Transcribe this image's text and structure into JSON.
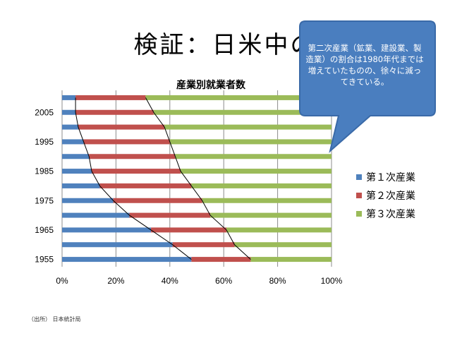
{
  "slide": {
    "title": "検証：日米中の",
    "source_note": "（出所） 日本統計局"
  },
  "callout": {
    "text": "第二次産業（鉱業、建設業、製造業）の割合は1980年代までは増えていたものの、徐々に減ってきている。",
    "fill": "#4a7ebf",
    "stroke": "#3a6aa8"
  },
  "chart_data": {
    "type": "bar",
    "orientation": "horizontal",
    "stacked": "percent",
    "title": "産業別就業者数",
    "categories": [
      "1955",
      "1960",
      "1965",
      "1970",
      "1975",
      "1980",
      "1985",
      "1990",
      "1995",
      "2000",
      "2005",
      "2010"
    ],
    "y_tick_labels": [
      "1955",
      "1965",
      "1975",
      "1985",
      "1995",
      "2005"
    ],
    "x_tick_labels": [
      "0%",
      "20%",
      "40%",
      "60%",
      "80%",
      "100%"
    ],
    "xlim": [
      0,
      100
    ],
    "grid": true,
    "legend_position": "right",
    "series": [
      {
        "name": "第１次産業",
        "color": "#4f81bd",
        "values": [
          48,
          41,
          33,
          25,
          19,
          14,
          11,
          10,
          8,
          6,
          5,
          5
        ]
      },
      {
        "name": "第２次産業",
        "color": "#c0504d",
        "values": [
          22,
          23,
          28,
          30,
          33,
          34,
          33,
          32,
          32,
          32,
          29,
          26
        ]
      },
      {
        "name": "第３次産業",
        "color": "#9bbb59",
        "values": [
          30,
          36,
          39,
          45,
          48,
          52,
          56,
          58,
          60,
          62,
          66,
          69
        ]
      }
    ]
  }
}
